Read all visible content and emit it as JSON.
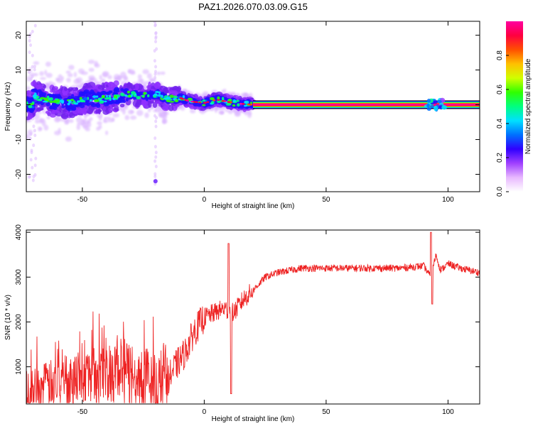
{
  "title": "PAZ1.2026.070.03.09.G15",
  "chart_data": [
    {
      "type": "heatmap",
      "title": "PAZ1.2026.070.03.09.G15",
      "xlabel": "Height of straight line (km)",
      "ylabel": "Frequency (Hz)",
      "xlim": [
        -73,
        113
      ],
      "ylim": [
        -25,
        24
      ],
      "xticks": [
        -50,
        0,
        50,
        100
      ],
      "yticks": [
        20,
        10,
        0,
        -10,
        -20
      ],
      "colorbar": {
        "label": "Normalized spectral amplitude",
        "range": [
          0,
          1
        ],
        "ticks": [
          0.0,
          0.2,
          0.4,
          0.6,
          0.8
        ],
        "colors": [
          "#ffffff",
          "#e8b8ff",
          "#a040ff",
          "#3000ff",
          "#0070ff",
          "#00e0ff",
          "#00ff80",
          "#30ff00",
          "#d0ff00",
          "#ffc000",
          "#ff5000",
          "#ff0040",
          "#ff00a0"
        ]
      },
      "ridge": {
        "description": "dominant frequency line",
        "points": [
          [
            -70,
            2.5
          ],
          [
            -62,
            1
          ],
          [
            -55,
            0.5
          ],
          [
            -48,
            2
          ],
          [
            -42,
            1.5
          ],
          [
            -36,
            2.5
          ],
          [
            -30,
            3
          ],
          [
            -24,
            2.5
          ],
          [
            -19,
            3
          ],
          [
            -15,
            1.5
          ],
          [
            -10,
            2
          ],
          [
            -6,
            1
          ],
          [
            0,
            0.5
          ],
          [
            5,
            1.5
          ],
          [
            10,
            0.8
          ],
          [
            15,
            0.3
          ],
          [
            20,
            0
          ],
          [
            113,
            0
          ]
        ],
        "steady_value": 0,
        "steady_from": 20
      },
      "features": [
        {
          "x": -20,
          "note": "vertical streak of scattered energy near -20 km"
        },
        {
          "x": 95,
          "note": "perturbation cluster near 92-98 km"
        }
      ]
    },
    {
      "type": "line",
      "xlabel": "Height of straight line (km)",
      "ylabel": "SNR (10 * v/v)",
      "xlim": [
        -73,
        113
      ],
      "ylim": [
        170,
        4050
      ],
      "xticks": [
        -50,
        0,
        50,
        100
      ],
      "yticks": [
        1000,
        2000,
        3000,
        4000
      ],
      "series": [
        {
          "name": "SNR",
          "color": "#ee2222",
          "x": [
            -73,
            -65,
            -55,
            -45,
            -38,
            -30,
            -25,
            -20,
            -16,
            -12,
            -8,
            -4,
            0,
            4,
            8,
            12,
            16,
            20,
            25,
            30,
            35,
            40,
            45,
            50,
            60,
            70,
            80,
            90,
            93,
            95,
            97,
            100,
            105,
            113
          ],
          "values": [
            400,
            600,
            750,
            800,
            900,
            850,
            700,
            500,
            600,
            1000,
            1300,
            1800,
            2100,
            2200,
            2300,
            2200,
            2500,
            2700,
            3000,
            3100,
            3150,
            3200,
            3200,
            3200,
            3200,
            3200,
            3200,
            3250,
            3000,
            3500,
            3150,
            3300,
            3200,
            3100
          ]
        }
      ],
      "features": [
        {
          "x": 10,
          "value": 3750,
          "note": "sharp spike"
        },
        {
          "x": 11,
          "value": 400,
          "note": "sharp dip"
        },
        {
          "x": 93,
          "value": 4000,
          "note": "spike"
        },
        {
          "x": 93.5,
          "value": 2400,
          "note": "dip"
        }
      ]
    }
  ]
}
